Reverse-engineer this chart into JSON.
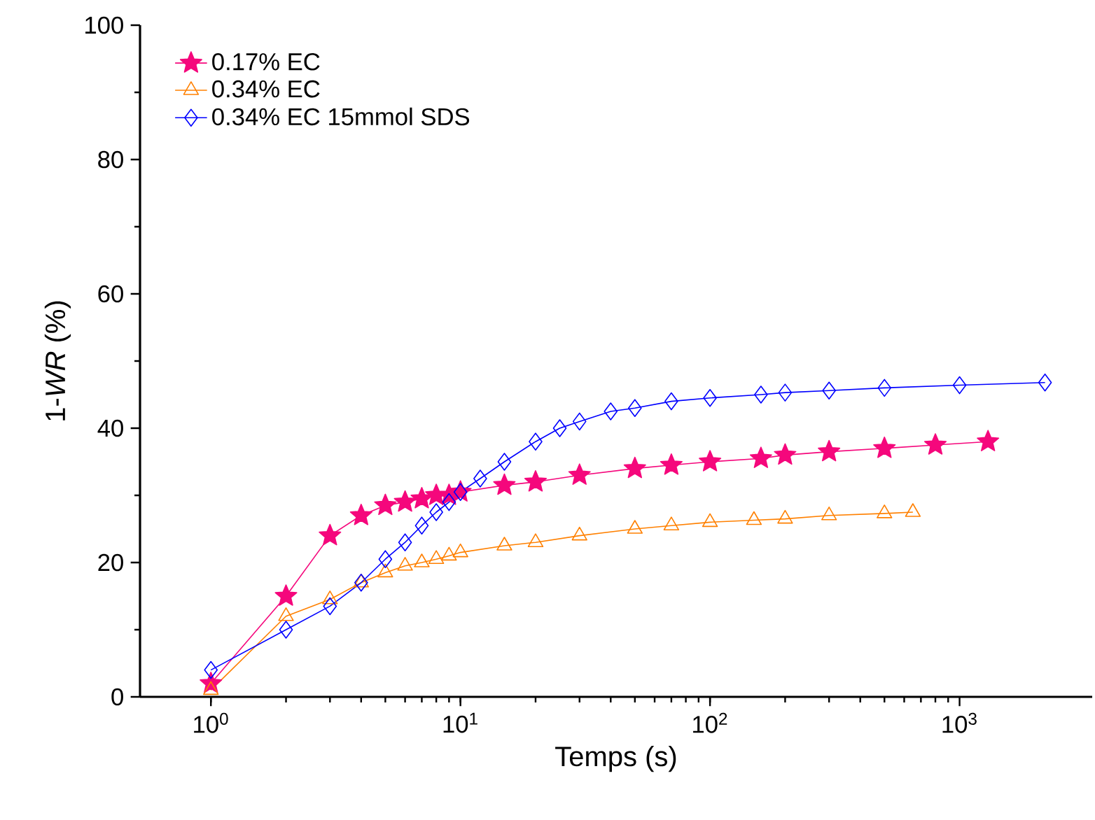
{
  "chart_data": {
    "type": "line",
    "xlabel": "Temps (s)",
    "ylabel": "1-*WR* (%)",
    "log": "x",
    "legend": "top left",
    "grid": false,
    "xlim": [
      0.52,
      3400
    ],
    "xticks": [
      {
        "value": 1,
        "label": "10$^{0}$"
      },
      {
        "value": 10,
        "label": "10$^{1}$"
      },
      {
        "value": 100,
        "label": "10$^{2}$"
      },
      {
        "value": 1000,
        "label": "10$^{3}$"
      }
    ],
    "ylim": [
      0,
      100
    ],
    "yticks": [
      0,
      20,
      40,
      60,
      80,
      100
    ],
    "series": [
      {
        "name": "0.17% EC",
        "color": "#f5077c",
        "marker": "star",
        "x": [
          1,
          2,
          3,
          4,
          5,
          6,
          7,
          8,
          9,
          10,
          15,
          20,
          30,
          50,
          70,
          100,
          160,
          200,
          300,
          500,
          800,
          1300
        ],
        "values": [
          2,
          15,
          24,
          27,
          28.5,
          29,
          29.5,
          30,
          30,
          30.5,
          31.5,
          32,
          33,
          34,
          34.5,
          35,
          35.5,
          36,
          36.5,
          37,
          37.5,
          38
        ]
      },
      {
        "name": "0.34% EC",
        "color": "#ff8000",
        "marker": "triangle",
        "x": [
          1,
          2,
          3,
          4,
          5,
          6,
          7,
          8,
          9,
          10,
          15,
          20,
          30,
          50,
          70,
          100,
          150,
          200,
          300,
          500,
          650
        ],
        "values": [
          1,
          12,
          14.5,
          17,
          18.5,
          19.5,
          20,
          20.5,
          21,
          21.5,
          22.5,
          23,
          24,
          25,
          25.5,
          26,
          26.3,
          26.5,
          27,
          27.3,
          27.5
        ]
      },
      {
        "name": "0.34% EC 15mmol SDS",
        "color": "#0000ff",
        "marker": "diamond",
        "x": [
          1,
          2,
          3,
          4,
          5,
          6,
          7,
          8,
          9,
          10,
          12,
          15,
          20,
          25,
          30,
          40,
          50,
          70,
          100,
          160,
          200,
          300,
          500,
          1000,
          2200
        ],
        "values": [
          4,
          10,
          13.5,
          17,
          20.5,
          23,
          25.5,
          27.5,
          29,
          30.5,
          32.5,
          35,
          38,
          40,
          41,
          42.5,
          43,
          44,
          44.5,
          45,
          45.3,
          45.6,
          46,
          46.4,
          46.8
        ]
      }
    ]
  }
}
